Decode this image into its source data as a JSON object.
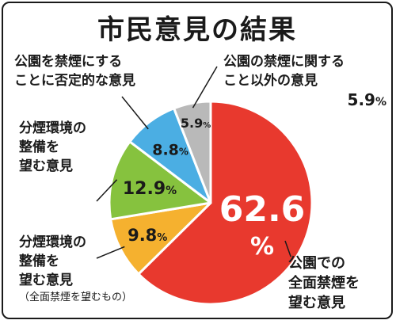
{
  "chart_data": {
    "type": "pie",
    "title": "市民意見の結果",
    "start_angle_deg": 0,
    "direction": "clockwise",
    "slices": [
      {
        "key": "full_ban",
        "lines": [
          "公園での",
          "全面禁煙を",
          "望む意見"
        ],
        "note": "",
        "value": 62.6,
        "display": "62.6",
        "unit": "%",
        "color": "#e8392e",
        "text_color": "#ffffff"
      },
      {
        "key": "separated_full",
        "lines": [
          "分煙環境の",
          "整備を",
          "望む意見"
        ],
        "note": "（全面禁煙を望むもの）",
        "value": 9.8,
        "display": "9.8",
        "unit": "%",
        "color": "#f5b12f",
        "text_color": "#1a1a1a"
      },
      {
        "key": "separated",
        "lines": [
          "分煙環境の",
          "整備を",
          "望む意見"
        ],
        "note": "",
        "value": 12.9,
        "display": "12.9",
        "unit": "%",
        "color": "#86c23e",
        "text_color": "#1a1a1a"
      },
      {
        "key": "negative",
        "lines": [
          "公園を禁煙にする",
          "ことに否定的な意見"
        ],
        "note": "",
        "value": 8.8,
        "display": "8.8",
        "unit": "%",
        "color": "#4baee3",
        "text_color": "#1a1a1a"
      },
      {
        "key": "other",
        "lines": [
          "公園の禁煙に関する",
          "こと以外の意見"
        ],
        "note": "",
        "value": 5.9,
        "display": "5.9",
        "unit": "%",
        "color": "#b9b9b9",
        "text_color": "#1a1a1a"
      }
    ],
    "legend": "none"
  }
}
